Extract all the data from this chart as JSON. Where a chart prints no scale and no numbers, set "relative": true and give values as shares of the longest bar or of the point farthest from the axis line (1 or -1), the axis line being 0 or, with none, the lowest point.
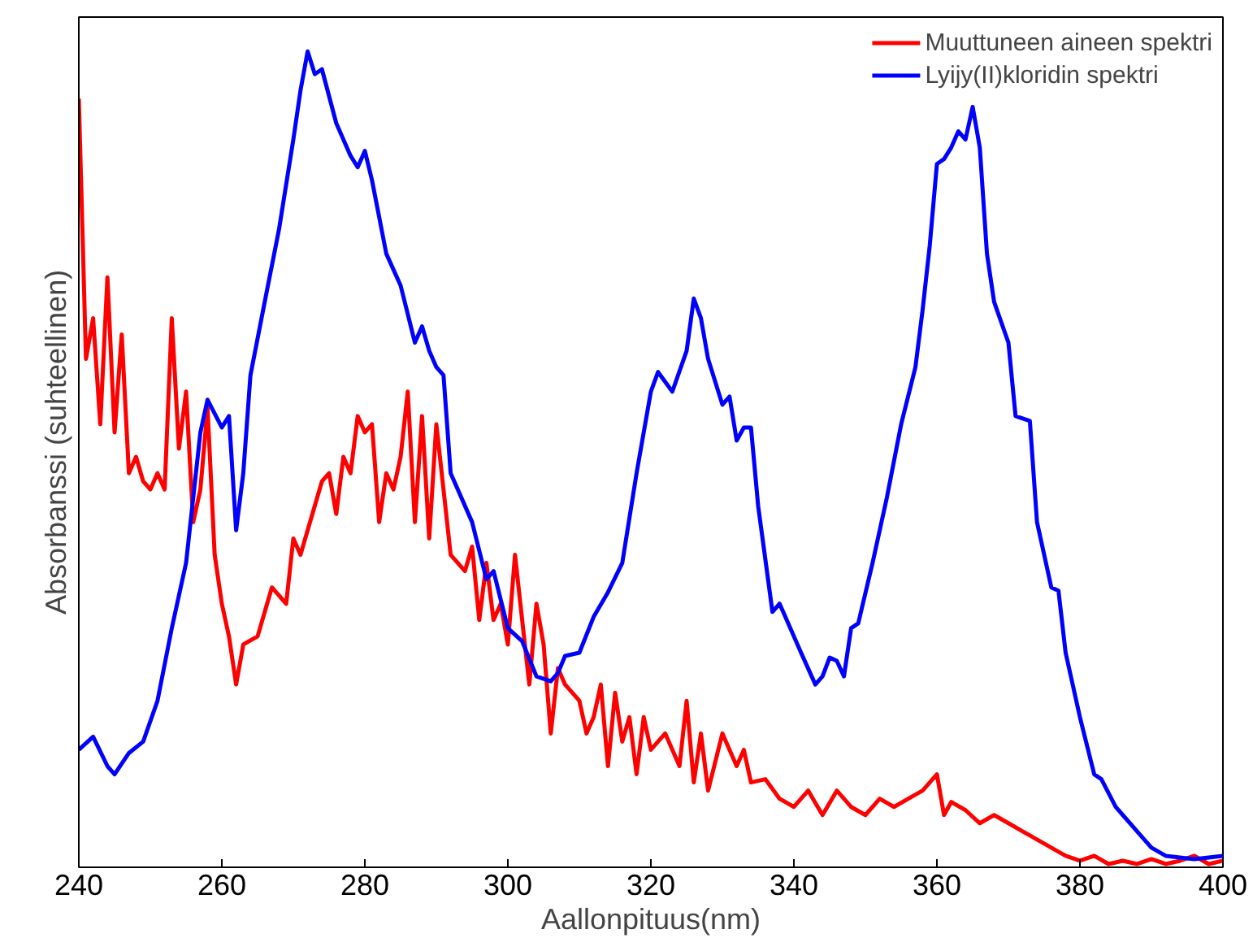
{
  "chart_data": {
    "type": "line",
    "relative": true,
    "xlabel": "Aallonpituus(nm)",
    "ylabel": "Absorbanssi (suhteellinen)",
    "xlim": [
      240,
      400
    ],
    "xticks": [
      240,
      260,
      280,
      300,
      320,
      340,
      360,
      380,
      400
    ],
    "tick_labels": "x",
    "grid": false,
    "legend": "top right",
    "line_style": "solid",
    "marker": "none",
    "series": [
      {
        "name": "Muuttuneen aineen spektri",
        "color": "#ff0000",
        "x": [
          240,
          241,
          242,
          243,
          244,
          245,
          246,
          247,
          248,
          249,
          250,
          251,
          252,
          253,
          254,
          255,
          256,
          257,
          258,
          259,
          260,
          261,
          262,
          263,
          265,
          267,
          269,
          270,
          271,
          273,
          274,
          275,
          276,
          277,
          278,
          279,
          280,
          281,
          282,
          283,
          284,
          285,
          286,
          287,
          288,
          289,
          290,
          292,
          294,
          295,
          296,
          297,
          298,
          299,
          300,
          301,
          302,
          303,
          304,
          305,
          306,
          307,
          308,
          310,
          311,
          312,
          313,
          314,
          315,
          316,
          317,
          318,
          319,
          320,
          322,
          324,
          325,
          326,
          327,
          328,
          330,
          331,
          332,
          333,
          334,
          336,
          338,
          340,
          342,
          344,
          346,
          348,
          350,
          352,
          354,
          356,
          358,
          360,
          361,
          362,
          364,
          366,
          368,
          370,
          372,
          374,
          376,
          378,
          380,
          382,
          384,
          386,
          388,
          390,
          392,
          394,
          396,
          398,
          400
        ],
        "values": [
          0.942,
          0.623,
          0.673,
          0.543,
          0.723,
          0.533,
          0.653,
          0.483,
          0.503,
          0.473,
          0.463,
          0.483,
          0.463,
          0.673,
          0.513,
          0.583,
          0.423,
          0.463,
          0.563,
          0.383,
          0.323,
          0.283,
          0.224,
          0.273,
          0.283,
          0.343,
          0.323,
          0.403,
          0.383,
          0.443,
          0.473,
          0.483,
          0.433,
          0.503,
          0.483,
          0.553,
          0.533,
          0.543,
          0.423,
          0.483,
          0.463,
          0.503,
          0.583,
          0.423,
          0.553,
          0.403,
          0.543,
          0.383,
          0.363,
          0.393,
          0.303,
          0.373,
          0.303,
          0.323,
          0.273,
          0.383,
          0.303,
          0.224,
          0.323,
          0.273,
          0.164,
          0.244,
          0.224,
          0.204,
          0.164,
          0.184,
          0.224,
          0.124,
          0.214,
          0.154,
          0.184,
          0.114,
          0.184,
          0.144,
          0.164,
          0.124,
          0.204,
          0.104,
          0.164,
          0.094,
          0.164,
          0.144,
          0.124,
          0.144,
          0.104,
          0.108,
          0.084,
          0.074,
          0.094,
          0.064,
          0.094,
          0.074,
          0.064,
          0.084,
          0.074,
          0.084,
          0.094,
          0.114,
          0.064,
          0.08,
          0.07,
          0.054,
          0.064,
          0.054,
          0.044,
          0.034,
          0.024,
          0.014,
          0.008,
          0.014,
          0.004,
          0.008,
          0.004,
          0.01,
          0.004,
          0.008,
          0.014,
          0.004,
          0.008
        ]
      },
      {
        "name": "Lyijy(II)kloridin spektri",
        "color": "#0000ff",
        "x": [
          240,
          242,
          244,
          245,
          247,
          249,
          251,
          253,
          255,
          257,
          258,
          260,
          261,
          262,
          263,
          264,
          266,
          268,
          270,
          271,
          272,
          273,
          274,
          276,
          278,
          279,
          280,
          281,
          283,
          285,
          287,
          288,
          289,
          290,
          291,
          292,
          293,
          295,
          297,
          298,
          300,
          302,
          304,
          306,
          307,
          308,
          310,
          312,
          314,
          316,
          318,
          320,
          321,
          323,
          325,
          326,
          327,
          328,
          330,
          331,
          332,
          333,
          334,
          335,
          337,
          338,
          339,
          341,
          343,
          344,
          345,
          346,
          347,
          348,
          349,
          351,
          353,
          355,
          357,
          358,
          359,
          360,
          361,
          362,
          363,
          364,
          365,
          366,
          367,
          368,
          370,
          371,
          373,
          374,
          375,
          376,
          377,
          378,
          380,
          382,
          383,
          385,
          386,
          388,
          390,
          392,
          396,
          398,
          400
        ],
        "values": [
          0.144,
          0.16,
          0.124,
          0.114,
          0.14,
          0.154,
          0.204,
          0.293,
          0.373,
          0.533,
          0.573,
          0.539,
          0.553,
          0.413,
          0.483,
          0.603,
          0.693,
          0.782,
          0.892,
          0.952,
          1,
          0.972,
          0.978,
          0.912,
          0.872,
          0.858,
          0.878,
          0.842,
          0.752,
          0.713,
          0.643,
          0.663,
          0.633,
          0.613,
          0.603,
          0.483,
          0.463,
          0.423,
          0.353,
          0.363,
          0.293,
          0.277,
          0.234,
          0.228,
          0.238,
          0.259,
          0.263,
          0.307,
          0.337,
          0.373,
          0.483,
          0.583,
          0.607,
          0.583,
          0.633,
          0.697,
          0.673,
          0.623,
          0.567,
          0.577,
          0.523,
          0.539,
          0.539,
          0.443,
          0.313,
          0.323,
          0.303,
          0.263,
          0.224,
          0.234,
          0.257,
          0.253,
          0.234,
          0.293,
          0.299,
          0.373,
          0.453,
          0.543,
          0.613,
          0.683,
          0.762,
          0.862,
          0.868,
          0.882,
          0.902,
          0.892,
          0.932,
          0.882,
          0.752,
          0.693,
          0.643,
          0.553,
          0.547,
          0.423,
          0.383,
          0.343,
          0.339,
          0.263,
          0.184,
          0.114,
          0.108,
          0.074,
          0.064,
          0.044,
          0.024,
          0.014,
          0.01,
          0.012,
          0.014
        ]
      }
    ]
  }
}
